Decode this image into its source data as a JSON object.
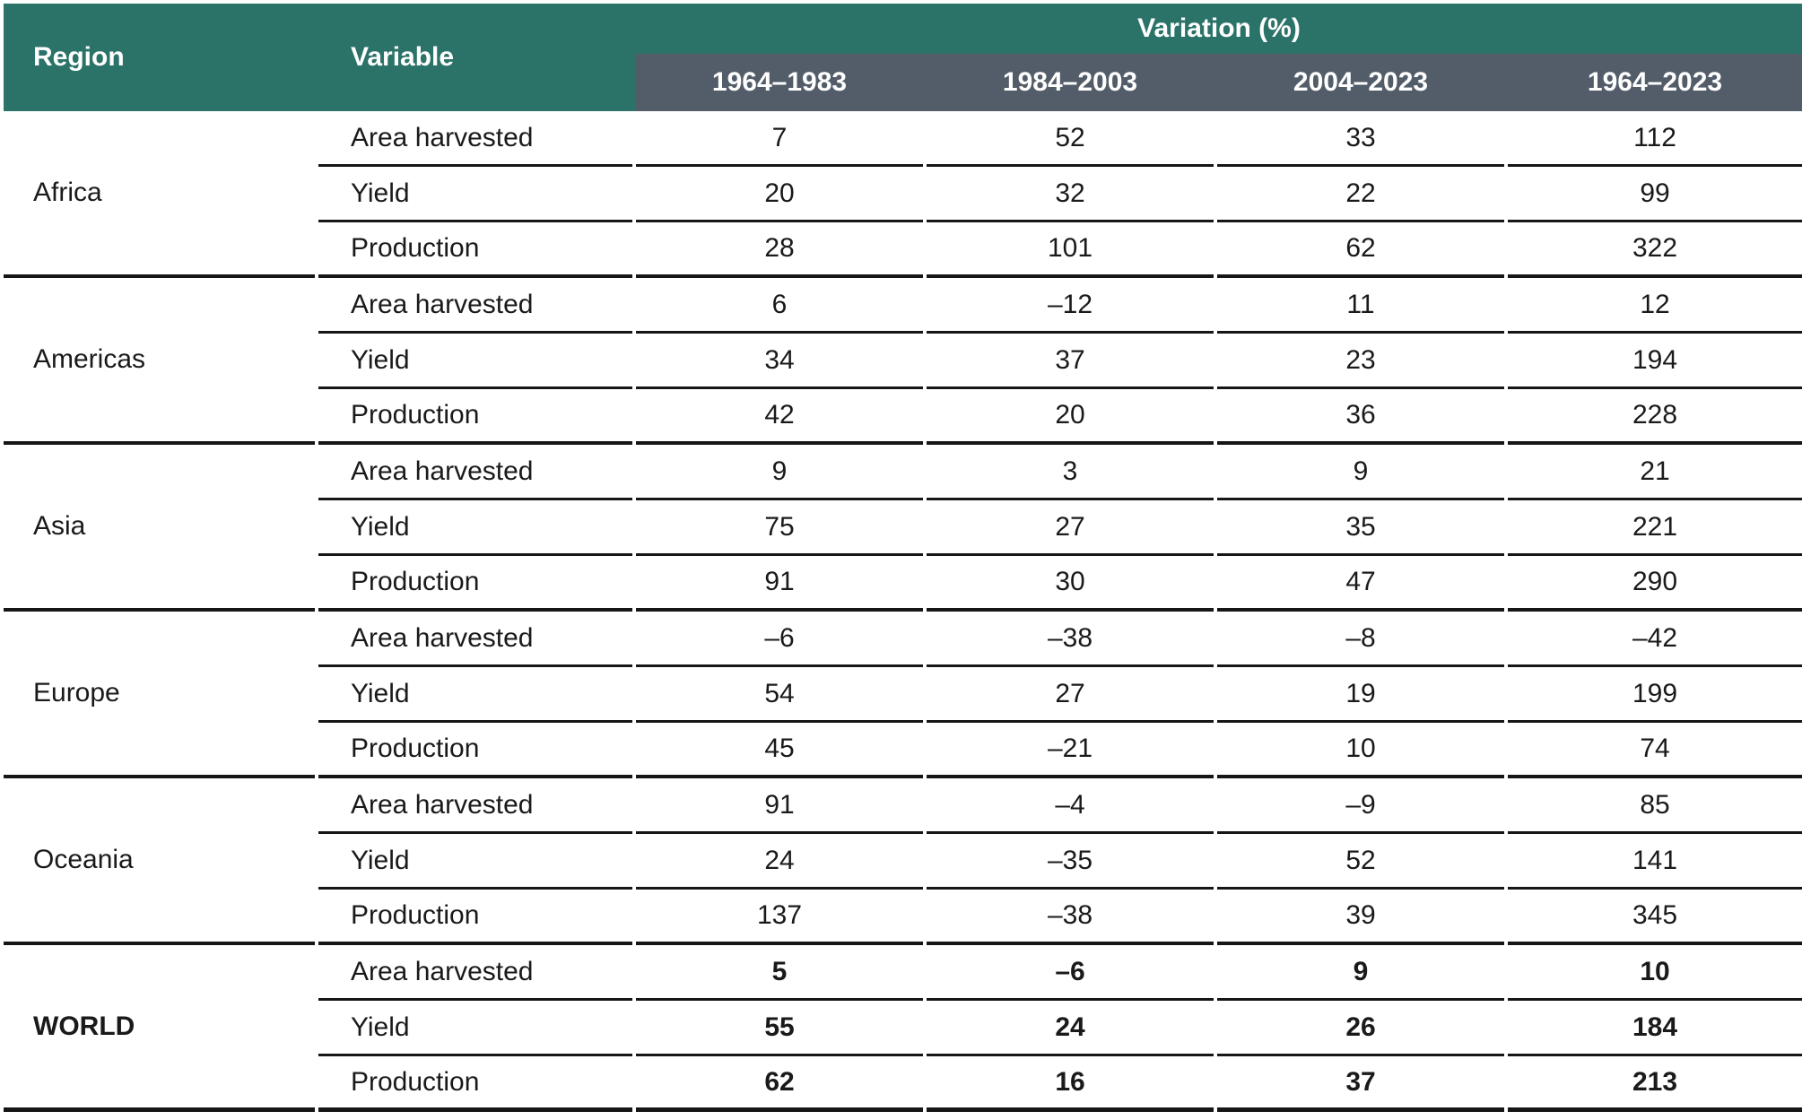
{
  "table": {
    "headers": {
      "region": "Region",
      "variable": "Variable",
      "variation": "Variation (%)",
      "periods": [
        "1964–1983",
        "1984–2003",
        "2004–2023",
        "1964–2023"
      ]
    },
    "groups": [
      {
        "region": "Africa",
        "bold": false,
        "rows": [
          {
            "variable": "Area harvested",
            "values": [
              "7",
              "52",
              "33",
              "112"
            ]
          },
          {
            "variable": "Yield",
            "values": [
              "20",
              "32",
              "22",
              "99"
            ]
          },
          {
            "variable": "Production",
            "values": [
              "28",
              "101",
              "62",
              "322"
            ]
          }
        ]
      },
      {
        "region": "Americas",
        "bold": false,
        "rows": [
          {
            "variable": "Area harvested",
            "values": [
              "6",
              "–12",
              "11",
              "12"
            ]
          },
          {
            "variable": "Yield",
            "values": [
              "34",
              "37",
              "23",
              "194"
            ]
          },
          {
            "variable": "Production",
            "values": [
              "42",
              "20",
              "36",
              "228"
            ]
          }
        ]
      },
      {
        "region": "Asia",
        "bold": false,
        "rows": [
          {
            "variable": "Area harvested",
            "values": [
              "9",
              "3",
              "9",
              "21"
            ]
          },
          {
            "variable": "Yield",
            "values": [
              "75",
              "27",
              "35",
              "221"
            ]
          },
          {
            "variable": "Production",
            "values": [
              "91",
              "30",
              "47",
              "290"
            ]
          }
        ]
      },
      {
        "region": "Europe",
        "bold": false,
        "rows": [
          {
            "variable": "Area harvested",
            "values": [
              "–6",
              "–38",
              "–8",
              "–42"
            ]
          },
          {
            "variable": "Yield",
            "values": [
              "54",
              "27",
              "19",
              "199"
            ]
          },
          {
            "variable": "Production",
            "values": [
              "45",
              "–21",
              "10",
              "74"
            ]
          }
        ]
      },
      {
        "region": "Oceania",
        "bold": false,
        "rows": [
          {
            "variable": "Area harvested",
            "values": [
              "91",
              "–4",
              "–9",
              "85"
            ]
          },
          {
            "variable": "Yield",
            "values": [
              "24",
              "–35",
              "52",
              "141"
            ]
          },
          {
            "variable": "Production",
            "values": [
              "137",
              "–38",
              "39",
              "345"
            ]
          }
        ]
      },
      {
        "region": "WORLD",
        "bold": true,
        "rows": [
          {
            "variable": "Area harvested",
            "values": [
              "5",
              "–6",
              "9",
              "10"
            ]
          },
          {
            "variable": "Yield",
            "values": [
              "55",
              "24",
              "26",
              "184"
            ]
          },
          {
            "variable": "Production",
            "values": [
              "62",
              "16",
              "37",
              "213"
            ]
          }
        ]
      }
    ]
  },
  "colors": {
    "header_teal": "#2b7268",
    "subheader_slate": "#525d69",
    "line": "#161616",
    "text": "#1a1a1a"
  }
}
